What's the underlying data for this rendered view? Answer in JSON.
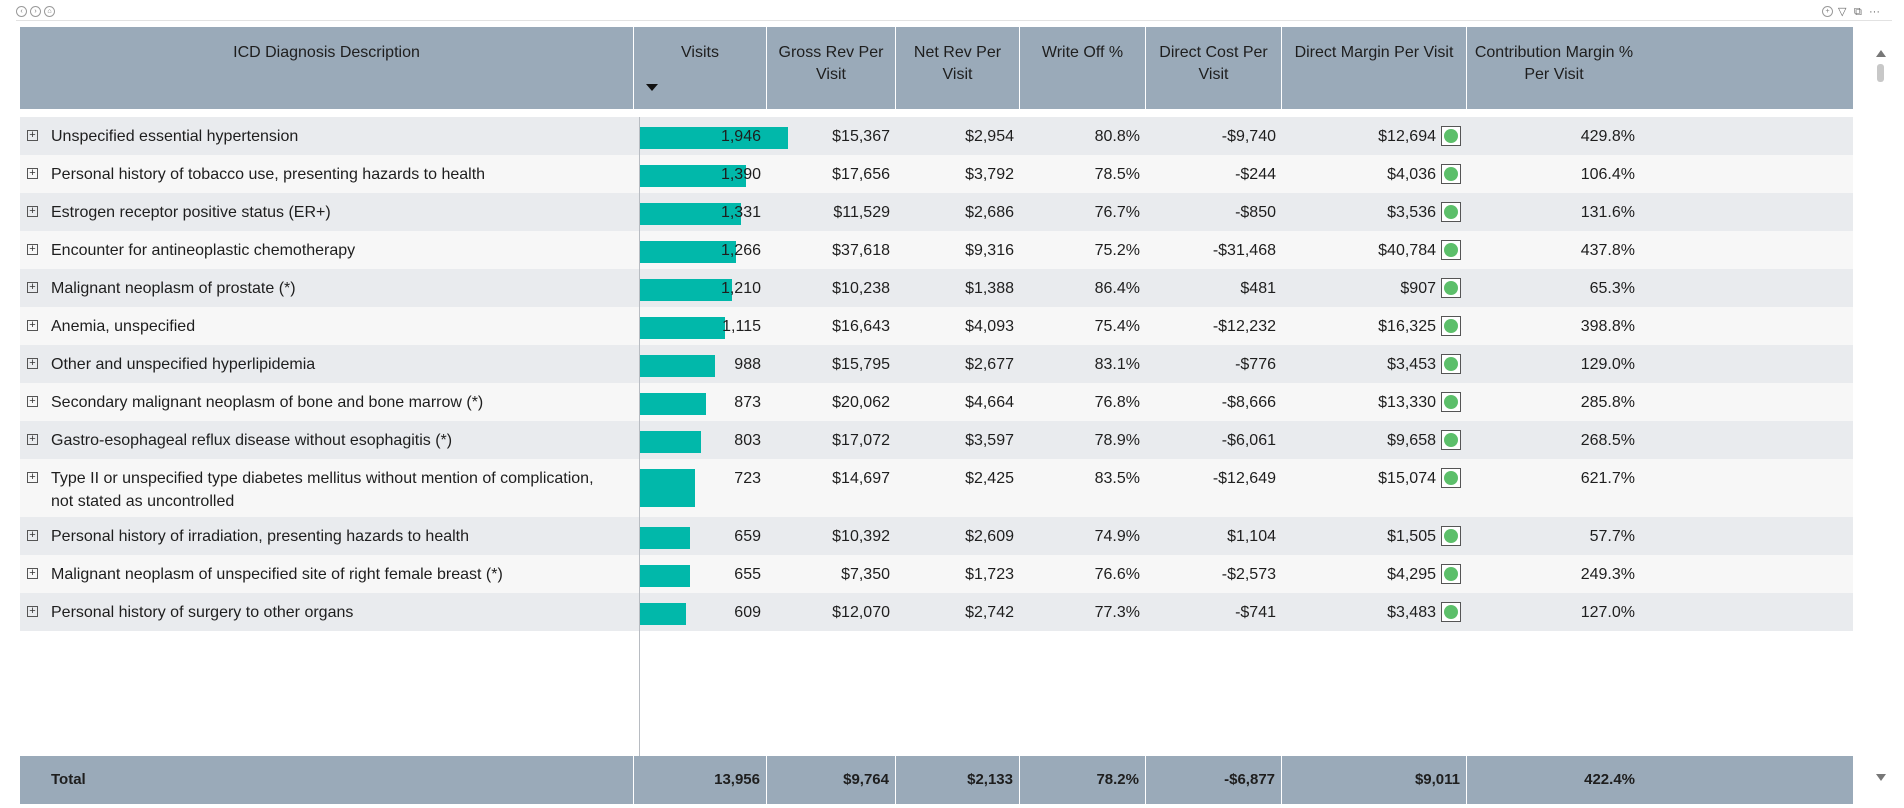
{
  "chrome": {
    "left_icons": [
      "back-icon",
      "forward-icon",
      "home-icon"
    ],
    "right_icons": [
      "focus-icon",
      "filter-icon",
      "expand-icon",
      "more-icon"
    ],
    "more_glyph": "···"
  },
  "columns": [
    {
      "key": "desc",
      "label": "ICD Diagnosis Description"
    },
    {
      "key": "visits",
      "label": "Visits"
    },
    {
      "key": "gross",
      "label": "Gross Rev Per Visit"
    },
    {
      "key": "net",
      "label": "Net Rev Per Visit"
    },
    {
      "key": "writeoff",
      "label": "Write Off %"
    },
    {
      "key": "cost",
      "label": "Direct Cost Per Visit"
    },
    {
      "key": "margin",
      "label": "Direct Margin Per Visit"
    },
    {
      "key": "contrib",
      "label": "Contribution Margin % Per Visit"
    }
  ],
  "sort": {
    "column": "visits",
    "direction": "descending"
  },
  "rows": [
    {
      "desc": "Unspecified essential hypertension",
      "visits": "1,946",
      "visits_value": 1946,
      "gross": "$15,367",
      "net": "$2,954",
      "writeoff": "80.8%",
      "cost": "-$9,740",
      "margin": "$12,694",
      "kpi": "green",
      "contrib": "429.8%"
    },
    {
      "desc": "Personal history of tobacco use, presenting hazards to health",
      "visits": "1,390",
      "visits_value": 1390,
      "gross": "$17,656",
      "net": "$3,792",
      "writeoff": "78.5%",
      "cost": "-$244",
      "margin": "$4,036",
      "kpi": "green",
      "contrib": "106.4%"
    },
    {
      "desc": "Estrogen receptor positive status (ER+)",
      "visits": "1,331",
      "visits_value": 1331,
      "gross": "$11,529",
      "net": "$2,686",
      "writeoff": "76.7%",
      "cost": "-$850",
      "margin": "$3,536",
      "kpi": "green",
      "contrib": "131.6%"
    },
    {
      "desc": "Encounter for antineoplastic chemotherapy",
      "visits": "1,266",
      "visits_value": 1266,
      "gross": "$37,618",
      "net": "$9,316",
      "writeoff": "75.2%",
      "cost": "-$31,468",
      "margin": "$40,784",
      "kpi": "green",
      "contrib": "437.8%"
    },
    {
      "desc": "Malignant neoplasm of prostate (*)",
      "visits": "1,210",
      "visits_value": 1210,
      "gross": "$10,238",
      "net": "$1,388",
      "writeoff": "86.4%",
      "cost": "$481",
      "margin": "$907",
      "kpi": "green",
      "contrib": "65.3%"
    },
    {
      "desc": "Anemia, unspecified",
      "visits": "1,115",
      "visits_value": 1115,
      "gross": "$16,643",
      "net": "$4,093",
      "writeoff": "75.4%",
      "cost": "-$12,232",
      "margin": "$16,325",
      "kpi": "green",
      "contrib": "398.8%"
    },
    {
      "desc": "Other and unspecified hyperlipidemia",
      "visits": "988",
      "visits_value": 988,
      "gross": "$15,795",
      "net": "$2,677",
      "writeoff": "83.1%",
      "cost": "-$776",
      "margin": "$3,453",
      "kpi": "green",
      "contrib": "129.0%"
    },
    {
      "desc": "Secondary malignant neoplasm of bone and bone marrow (*)",
      "visits": "873",
      "visits_value": 873,
      "gross": "$20,062",
      "net": "$4,664",
      "writeoff": "76.8%",
      "cost": "-$8,666",
      "margin": "$13,330",
      "kpi": "green",
      "contrib": "285.8%"
    },
    {
      "desc": "Gastro-esophageal reflux disease without esophagitis (*)",
      "visits": "803",
      "visits_value": 803,
      "gross": "$17,072",
      "net": "$3,597",
      "writeoff": "78.9%",
      "cost": "-$6,061",
      "margin": "$9,658",
      "kpi": "green",
      "contrib": "268.5%"
    },
    {
      "desc": "Type II or unspecified type diabetes mellitus without mention of complication, not stated as uncontrolled",
      "visits": "723",
      "visits_value": 723,
      "gross": "$14,697",
      "net": "$2,425",
      "writeoff": "83.5%",
      "cost": "-$12,649",
      "margin": "$15,074",
      "kpi": "green",
      "contrib": "621.7%"
    },
    {
      "desc": "Personal history of irradiation, presenting hazards to health",
      "visits": "659",
      "visits_value": 659,
      "gross": "$10,392",
      "net": "$2,609",
      "writeoff": "74.9%",
      "cost": "$1,104",
      "margin": "$1,505",
      "kpi": "green",
      "contrib": "57.7%"
    },
    {
      "desc": "Malignant neoplasm of unspecified site of right female breast (*)",
      "visits": "655",
      "visits_value": 655,
      "gross": "$7,350",
      "net": "$1,723",
      "writeoff": "76.6%",
      "cost": "-$2,573",
      "margin": "$4,295",
      "kpi": "green",
      "contrib": "249.3%"
    },
    {
      "desc": "Personal history of surgery to other organs",
      "visits": "609",
      "visits_value": 609,
      "gross": "$12,070",
      "net": "$2,742",
      "writeoff": "77.3%",
      "cost": "-$741",
      "margin": "$3,483",
      "kpi": "green",
      "contrib": "127.0%"
    }
  ],
  "total": {
    "label": "Total",
    "visits": "13,956",
    "gross": "$9,764",
    "net": "$2,133",
    "writeoff": "78.2%",
    "cost": "-$6,877",
    "margin": "$9,011",
    "contrib": "422.4%"
  },
  "colors": {
    "header_bg": "#9aaab9",
    "bar": "#01b8aa",
    "kpi_green": "#5cbf6a",
    "row_odd": "#e9ebee",
    "row_even": "#f7f7f7"
  }
}
